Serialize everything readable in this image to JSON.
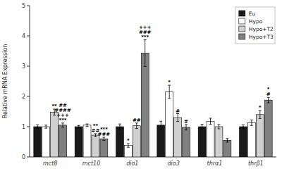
{
  "chart_data": {
    "type": "bar",
    "ylabel": "Relative mRNA Expression",
    "categories": [
      "mct8",
      "mct10",
      "dio1",
      "dio3",
      "thrα1",
      "thrβ1"
    ],
    "series": [
      {
        "name": "Eu",
        "color": "#1a1a1a",
        "values": [
          1.0,
          1.0,
          1.0,
          1.05,
          1.0,
          1.0
        ],
        "errors": [
          0.06,
          0.04,
          0.09,
          0.13,
          0.08,
          0.06
        ]
      },
      {
        "name": "Hypo",
        "color": "#ffffff",
        "values": [
          1.0,
          1.05,
          0.38,
          2.15,
          1.18,
          1.13
        ],
        "errors": [
          0.05,
          0.04,
          0.06,
          0.22,
          0.1,
          0.09
        ]
      },
      {
        "name": "Hypo+T2",
        "color": "#d0d0d0",
        "values": [
          1.48,
          0.72,
          1.03,
          1.3,
          1.0,
          1.4
        ],
        "errors": [
          0.1,
          0.05,
          0.09,
          0.13,
          0.07,
          0.13
        ]
      },
      {
        "name": "Hypo+T3",
        "color": "#808080",
        "values": [
          1.05,
          0.6,
          3.43,
          0.98,
          0.55,
          1.88
        ],
        "errors": [
          0.07,
          0.05,
          0.44,
          0.09,
          0.06,
          0.09
        ]
      }
    ],
    "annotations": [
      {
        "text": "**",
        "category": "mct8",
        "series": "Hypo+T2"
      },
      {
        "text": "***",
        "category": "mct8",
        "series": "Hypo+T3"
      },
      {
        "text": "+++",
        "category": "mct8",
        "series": "Hypo+T3"
      },
      {
        "text": "####",
        "category": "mct8",
        "series": "Hypo+T3"
      },
      {
        "text": "##",
        "category": "mct8",
        "series": "Hypo+T3"
      },
      {
        "text": "##",
        "category": "mct10",
        "series": "Hypo+T2"
      },
      {
        "text": "**",
        "category": "mct10",
        "series": "Hypo+T2"
      },
      {
        "text": "###",
        "category": "mct10",
        "series": "Hypo+T3"
      },
      {
        "text": "***",
        "category": "mct10",
        "series": "Hypo+T3"
      },
      {
        "text": "*",
        "category": "dio1",
        "series": "Hypo"
      },
      {
        "text": "##",
        "category": "dio1",
        "series": "Hypo+T2"
      },
      {
        "text": "***",
        "category": "dio1",
        "series": "Hypo+T3"
      },
      {
        "text": "###",
        "category": "dio1",
        "series": "Hypo+T3"
      },
      {
        "text": "+++",
        "category": "dio1",
        "series": "Hypo+T3"
      },
      {
        "text": "*",
        "category": "dio3",
        "series": "Hypo"
      },
      {
        "text": "#",
        "category": "dio3",
        "series": "Hypo+T2"
      },
      {
        "text": "#",
        "category": "dio3",
        "series": "Hypo+T3"
      },
      {
        "text": "*",
        "category": "thrβ1",
        "series": "Hypo+T2"
      },
      {
        "text": "#",
        "category": "thrβ1",
        "series": "Hypo+T3"
      },
      {
        "text": "*",
        "category": "thrβ1",
        "series": "Hypo+T3"
      }
    ],
    "ylim": [
      0.0,
      5.0
    ],
    "yticks": [
      0,
      1,
      2,
      3,
      4,
      5
    ],
    "grid": false,
    "legend": "upper right"
  }
}
